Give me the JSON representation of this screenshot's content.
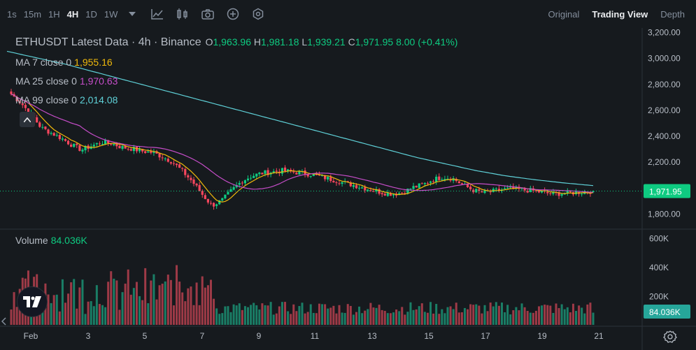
{
  "toolbar": {
    "timeframes": [
      "1s",
      "15m",
      "1H",
      "4H",
      "1D",
      "1W"
    ],
    "active_timeframe": "4H",
    "icons": [
      "chevron-down-icon",
      "indicator-chart-icon",
      "chart-settings-icon",
      "camera-icon",
      "plus-circle-icon",
      "hexagon-settings-icon"
    ],
    "views": [
      "Original",
      "Trading View",
      "Depth"
    ],
    "active_view": "Trading View"
  },
  "legend": {
    "symbol_line": "ETHUSDT Latest Data · 4h · Binance",
    "ohlc": {
      "o_key": "O",
      "o": "1,963.96",
      "h_key": "H",
      "h": "1,981.18",
      "l_key": "L",
      "l": "1,939.21",
      "c_key": "C",
      "c": "1,971.95",
      "change": "8.00 (+0.41%)"
    },
    "ma7": {
      "label": "MA 7 close 0",
      "value": "1,955.16",
      "color": "#f0b90b"
    },
    "ma25": {
      "label": "MA 25 close 0",
      "value": "1,970.63",
      "color": "#c64dc9"
    },
    "ma99": {
      "label": "MA 99 close 0",
      "value": "2,014.08",
      "color": "#5fd1d8"
    },
    "volume": {
      "label": "Volume",
      "value": "84.036K"
    }
  },
  "chart_data": {
    "type": "candlestick",
    "symbol": "ETHUSDT",
    "interval": "4h",
    "price_axis": {
      "ticks": [
        "3,200.00",
        "3,000.00",
        "2,800.00",
        "2,600.00",
        "2,400.00",
        "2,200.00",
        "2,000.00",
        "1,800.00"
      ],
      "ylim": [
        1700,
        3230
      ]
    },
    "volume_axis": {
      "ticks": [
        "600K",
        "400K",
        "200K"
      ],
      "ylim": [
        0,
        650000
      ]
    },
    "x_ticks": [
      "Feb",
      "3",
      "5",
      "7",
      "9",
      "11",
      "13",
      "15",
      "17",
      "19",
      "21"
    ],
    "last_price": "1,971.95",
    "last_volume": "84.036K",
    "colors": {
      "up": "#0ecb81",
      "down": "#f6465d",
      "up_vol": "#1a7e66",
      "down_vol": "#9e3a47",
      "ma7": "#f0b90b",
      "ma25": "#c64dc9",
      "ma99": "#5fd1d8"
    },
    "approx_close_path": [
      2720,
      2650,
      2560,
      2460,
      2420,
      2380,
      2330,
      2290,
      2320,
      2350,
      2340,
      2310,
      2300,
      2280,
      2270,
      2240,
      2200,
      2130,
      2050,
      1950,
      1860,
      1900,
      1980,
      2050,
      2090,
      2110,
      2120,
      2130,
      2120,
      2110,
      2100,
      2080,
      2060,
      2040,
      2020,
      2000,
      1980,
      1960,
      1950,
      1960,
      2000,
      2020,
      2060,
      2080,
      2070,
      2020,
      1980,
      1960,
      1970,
      1985,
      1990,
      1980,
      1975,
      1960,
      1950,
      1955,
      1960,
      1965,
      1971.95
    ],
    "ma99_path": [
      3050,
      3000,
      2950,
      2890,
      2830,
      2770,
      2710,
      2650,
      2590,
      2530,
      2470,
      2410,
      2350,
      2290,
      2230,
      2180,
      2130,
      2090,
      2060,
      2035,
      2014.08
    ]
  }
}
